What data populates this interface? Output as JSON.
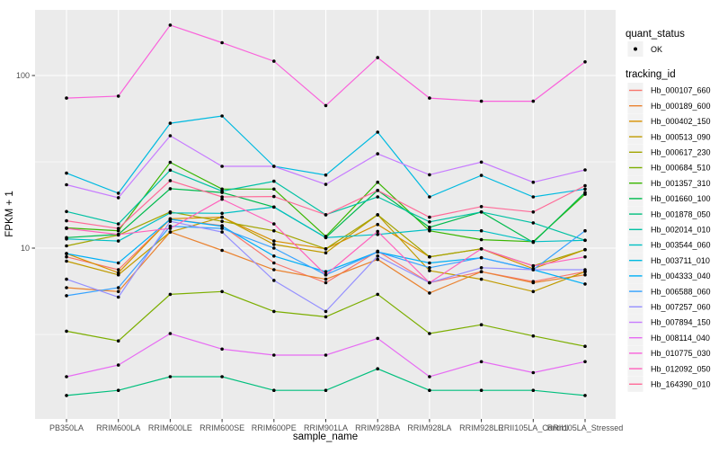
{
  "chart": {
    "y_axis_title": "FPKM + 1",
    "x_axis_title": "sample_name",
    "legend": {
      "quant_status_title": "quant_status",
      "quant_status_value": "OK",
      "tracking_id_title": "tracking_id"
    },
    "colors": {
      "panel_background": "#EBEBEB",
      "gridline": "#FFFFFF",
      "legend_key_background": "#F2F2F2",
      "point": "#000000",
      "axis_text": "#4D4D4D"
    }
  },
  "chart_data": {
    "type": "line",
    "title": "",
    "xlabel": "sample_name",
    "ylabel": "FPKM + 1",
    "y_scale": "log10",
    "ylim": [
      1.1,
      235
    ],
    "y_major_ticks": [
      100,
      10
    ],
    "y_minor_ticks": [
      31.6,
      3.16
    ],
    "grid": true,
    "legend_position": "right",
    "quant_status": "OK",
    "categories": [
      "PB350LA",
      "RRIM600LA",
      "RRIM600LE",
      "RRIM600SE",
      "RRIM600PE",
      "RRIM901LA",
      "RRIM928BA",
      "RRIM928LA",
      "RRIM928LE",
      "RRII105LA_Control",
      "RRII105LA_Stressed"
    ],
    "series": [
      {
        "name": "Hb_000107_660",
        "color": "#F8766D",
        "values": [
          8.9,
          7.5,
          14.7,
          13.5,
          8.2,
          6.3,
          9.6,
          6.3,
          7.3,
          6.4,
          7.3
        ]
      },
      {
        "name": "Hb_000189_600",
        "color": "#EA8331",
        "values": [
          5.9,
          5.6,
          12.4,
          9.7,
          7.5,
          6.6,
          8.6,
          5.5,
          7.3,
          6.3,
          7.0
        ]
      },
      {
        "name": "Hb_000402_150",
        "color": "#D89000",
        "values": [
          9.3,
          7.2,
          14.8,
          15.1,
          11.0,
          9.9,
          13.7,
          8.9,
          9.9,
          7.6,
          9.8
        ]
      },
      {
        "name": "Hb_000513_090",
        "color": "#C09B00",
        "values": [
          8.4,
          7.0,
          12.4,
          15.1,
          10.5,
          9.4,
          15.6,
          7.4,
          6.6,
          5.6,
          7.3
        ]
      },
      {
        "name": "Hb_000617_230",
        "color": "#A3A500",
        "values": [
          10.3,
          11.9,
          16.2,
          14.3,
          12.6,
          9.9,
          15.6,
          8.9,
          9.9,
          7.9,
          9.8
        ]
      },
      {
        "name": "Hb_000684_510",
        "color": "#7CAE00",
        "values": [
          3.3,
          2.9,
          5.4,
          5.6,
          4.3,
          4.0,
          5.4,
          3.2,
          3.6,
          3.1,
          2.7
        ]
      },
      {
        "name": "Hb_001357_310",
        "color": "#39B600",
        "values": [
          13.1,
          12.6,
          31.4,
          22.0,
          22.0,
          11.7,
          24.1,
          12.6,
          11.2,
          10.9,
          20.5
        ]
      },
      {
        "name": "Hb_001660_100",
        "color": "#00BB4E",
        "values": [
          11.5,
          12.0,
          22.1,
          21.0,
          17.3,
          11.5,
          21.6,
          13.2,
          16.2,
          10.8,
          21.0
        ]
      },
      {
        "name": "Hb_001878_050",
        "color": "#00BF7D",
        "values": [
          1.4,
          1.5,
          1.8,
          1.8,
          1.5,
          1.5,
          2.0,
          1.5,
          1.5,
          1.5,
          1.4
        ]
      },
      {
        "name": "Hb_002014_010",
        "color": "#00C1A3",
        "values": [
          16.3,
          13.8,
          28.3,
          21.4,
          24.4,
          15.6,
          19.8,
          14.2,
          16.2,
          14.0,
          11.1
        ]
      },
      {
        "name": "Hb_003544_060",
        "color": "#00BFC4",
        "values": [
          11.3,
          11.0,
          16.0,
          15.9,
          17.3,
          11.5,
          12.0,
          12.8,
          12.6,
          10.9,
          11.1
        ]
      },
      {
        "name": "Hb_003711_010",
        "color": "#00BAE0",
        "values": [
          27.2,
          20.8,
          52.9,
          58.3,
          29.8,
          26.5,
          47.0,
          19.8,
          26.4,
          19.8,
          22.0
        ]
      },
      {
        "name": "Hb_004333_040",
        "color": "#00B0F6",
        "values": [
          9.3,
          8.2,
          14.7,
          13.4,
          9.0,
          7.3,
          9.5,
          8.2,
          8.8,
          7.5,
          6.2
        ]
      },
      {
        "name": "Hb_006588_060",
        "color": "#35A2FF",
        "values": [
          5.3,
          5.9,
          13.4,
          13.0,
          10.0,
          7.0,
          9.5,
          7.7,
          8.8,
          7.5,
          12.6
        ]
      },
      {
        "name": "Hb_007257_060",
        "color": "#9590FF",
        "values": [
          6.6,
          5.2,
          14.3,
          12.4,
          6.5,
          4.3,
          9.0,
          6.3,
          7.7,
          7.5,
          7.5
        ]
      },
      {
        "name": "Hb_007894_150",
        "color": "#C77CFF",
        "values": [
          23.3,
          19.6,
          44.8,
          29.8,
          29.8,
          23.4,
          35.2,
          26.6,
          31.5,
          24.1,
          28.4
        ]
      },
      {
        "name": "Hb_008114_040",
        "color": "#E76BF3",
        "values": [
          1.8,
          2.1,
          3.2,
          2.6,
          2.4,
          2.4,
          3.0,
          1.8,
          2.2,
          1.9,
          2.2
        ]
      },
      {
        "name": "Hb_010775_030",
        "color": "#FA62DB",
        "values": [
          74,
          76,
          196,
          155,
          121,
          67,
          127,
          74,
          71,
          71,
          120
        ]
      },
      {
        "name": "Hb_012092_050",
        "color": "#FF62BC",
        "values": [
          13.0,
          12.0,
          13.0,
          19.2,
          13.8,
          7.0,
          12.5,
          6.3,
          9.9,
          7.9,
          8.9
        ]
      },
      {
        "name": "Hb_164390_010",
        "color": "#FF6A98",
        "values": [
          14.4,
          13.0,
          24.6,
          19.8,
          19.9,
          15.6,
          21.6,
          15.1,
          17.4,
          16.2,
          23.0
        ]
      }
    ]
  }
}
